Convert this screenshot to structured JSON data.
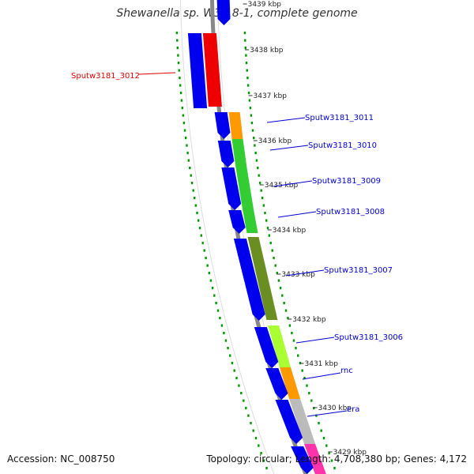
{
  "title": "Shewanella sp. W3-18-1, complete genome",
  "footer": {
    "accession": "Accession: NC_008750",
    "summary": "Topology: circular; Length: 4,708,380 bp; Genes: 4,172"
  },
  "ticks": [
    "3439 kbp",
    "3438 kbp",
    "3437 kbp",
    "3436 kbp",
    "3435 kbp",
    "3434 kbp",
    "3433 kbp",
    "3432 kbp",
    "3431 kbp",
    "3430 kbp",
    "3429 kbp"
  ],
  "gene_labels": [
    {
      "text": "Sputw3181_3012",
      "color": "#dd0000"
    },
    {
      "text": "Sputw3181_3011",
      "color": "#0000cc"
    },
    {
      "text": "Sputw3181_3010",
      "color": "#0000cc"
    },
    {
      "text": "Sputw3181_3009",
      "color": "#0000cc"
    },
    {
      "text": "Sputw3181_3008",
      "color": "#0000cc"
    },
    {
      "text": "Sputw3181_3007",
      "color": "#0000cc"
    },
    {
      "text": "Sputw3181_3006",
      "color": "#0000cc"
    },
    {
      "text": "rnc",
      "color": "#0000cc"
    },
    {
      "text": "era",
      "color": "#0000cc"
    }
  ],
  "colors": {
    "cds": "#0000ee",
    "backbone": "#888888",
    "gc_skew": "#009900",
    "gene_3012": "#ee0000",
    "gene_3011": "#ff9900",
    "gene_3010": "#33cc33",
    "gene_3009": "#33cc33",
    "gene_3008": "#33cc33",
    "gene_3007": "#6b8e23",
    "gene_3006": "#aaff33",
    "gene_rnc": "#ff9900",
    "gene_era": "#bbbbbb",
    "gene_next": "#ff33aa"
  }
}
